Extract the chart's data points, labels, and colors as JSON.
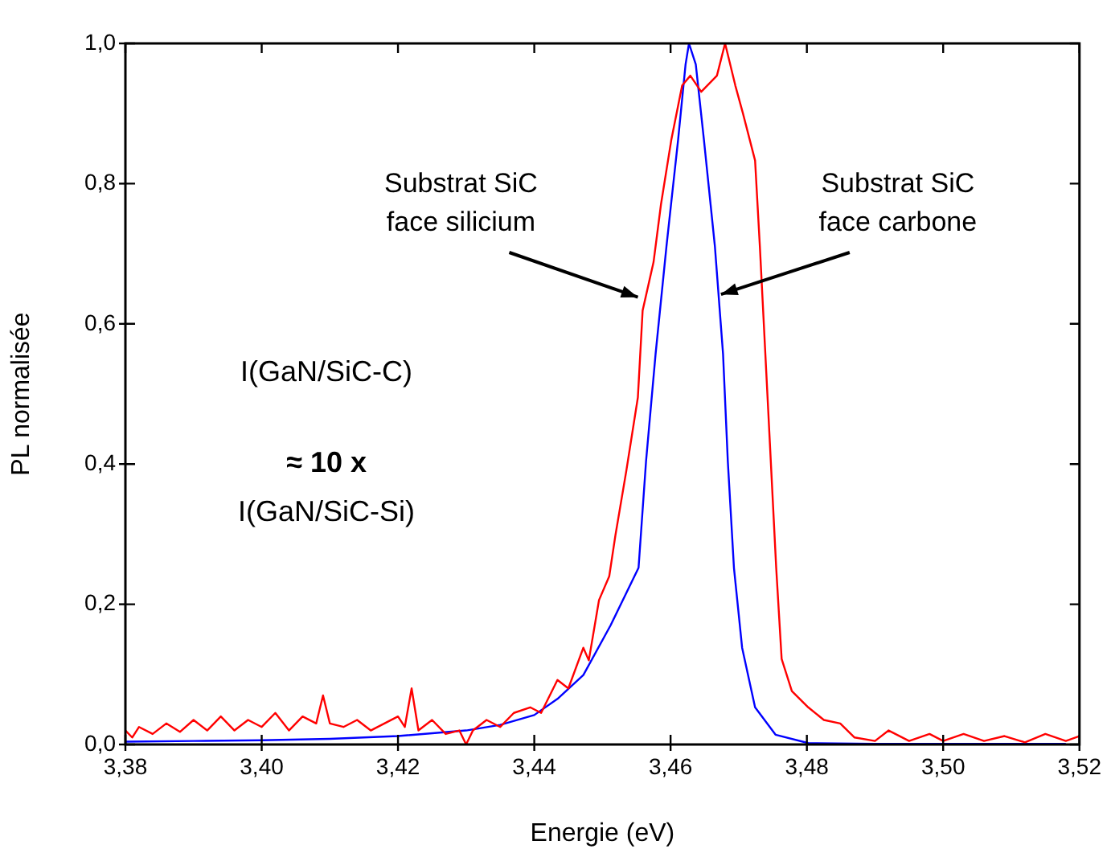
{
  "chart_data": {
    "type": "line",
    "xlabel": "Energie (eV)",
    "ylabel": "PL normalisée",
    "xlim": [
      3.38,
      3.52
    ],
    "xticks": [
      {
        "value": 3.38,
        "label": "3,38"
      },
      {
        "value": 3.4,
        "label": "3,40"
      },
      {
        "value": 3.42,
        "label": "3,42"
      },
      {
        "value": 3.44,
        "label": "3,44"
      },
      {
        "value": 3.46,
        "label": "3,46"
      },
      {
        "value": 3.48,
        "label": "3,48"
      },
      {
        "value": 3.5,
        "label": "3,50"
      },
      {
        "value": 3.52,
        "label": "3,52"
      }
    ],
    "ylim": [
      0,
      1
    ],
    "yticks": [
      {
        "value": 0,
        "label": "0,0"
      },
      {
        "value": 0.2,
        "label": "0,2"
      },
      {
        "value": 0.4,
        "label": "0,4"
      },
      {
        "value": 0.6,
        "label": "0,6"
      },
      {
        "value": 0.8,
        "label": "0,8"
      },
      {
        "value": 1,
        "label": "1,0"
      }
    ],
    "grid": false,
    "legend": false,
    "marker": "none",
    "line_style": "solid",
    "annotations": [
      {
        "text": "Substrat SiC\nface silicium",
        "x": 3.4552,
        "y": 0.638
      },
      {
        "text": "Substrat SiC\nface carbone",
        "x": 3.4674,
        "y": 0.642
      },
      "I(GaN/SiC-C)",
      "≈ 10 x",
      "I(GaN/SiC-Si)"
    ],
    "series": [
      {
        "color": "#ff0000",
        "x": [
          3.38,
          3.381,
          3.382,
          3.384,
          3.386,
          3.388,
          3.39,
          3.392,
          3.394,
          3.396,
          3.398,
          3.4,
          3.402,
          3.404,
          3.406,
          3.408,
          3.409,
          3.41,
          3.412,
          3.414,
          3.416,
          3.418,
          3.42,
          3.421,
          3.422,
          3.423,
          3.425,
          3.427,
          3.429,
          3.43,
          3.431,
          3.433,
          3.435,
          3.437,
          3.4394,
          3.441,
          3.4434,
          3.445,
          3.4472,
          3.448,
          3.4495,
          3.451,
          3.4519,
          3.4535,
          3.4552,
          3.4559,
          3.4575,
          3.4586,
          3.4601,
          3.4617,
          3.4629,
          3.4645,
          3.4668,
          3.468,
          3.4695,
          3.4706,
          3.4724,
          3.4731,
          3.4743,
          3.4755,
          3.4763,
          3.4778,
          3.4802,
          3.4825,
          3.4849,
          3.487,
          3.49,
          3.492,
          3.495,
          3.498,
          3.5,
          3.503,
          3.506,
          3.509,
          3.512,
          3.515,
          3.518,
          3.52
        ],
        "values": [
          0.02,
          0.01,
          0.025,
          0.015,
          0.03,
          0.018,
          0.035,
          0.02,
          0.04,
          0.02,
          0.035,
          0.025,
          0.045,
          0.02,
          0.04,
          0.03,
          0.07,
          0.03,
          0.025,
          0.035,
          0.02,
          0.03,
          0.04,
          0.025,
          0.08,
          0.02,
          0.035,
          0.015,
          0.02,
          0,
          0.02,
          0.035,
          0.025,
          0.045,
          0.053,
          0.045,
          0.092,
          0.08,
          0.138,
          0.12,
          0.206,
          0.24,
          0.298,
          0.39,
          0.495,
          0.619,
          0.688,
          0.771,
          0.862,
          0.94,
          0.954,
          0.931,
          0.954,
          1.0,
          0.94,
          0.901,
          0.833,
          0.711,
          0.482,
          0.252,
          0.122,
          0.076,
          0.053,
          0.035,
          0.03,
          0.01,
          0.005,
          0.02,
          0.005,
          0.015,
          0.005,
          0.015,
          0.005,
          0.012,
          0.003,
          0.015,
          0.005,
          0.012
        ]
      },
      {
        "color": "#0000ff",
        "x": [
          3.38,
          3.39,
          3.4,
          3.41,
          3.42,
          3.43,
          3.435,
          3.44,
          3.4434,
          3.4472,
          3.4512,
          3.4553,
          3.4564,
          3.4578,
          3.4594,
          3.4611,
          3.4622,
          3.4627,
          3.4637,
          3.4649,
          3.4665,
          3.4677,
          3.4684,
          3.4693,
          3.4705,
          3.4724,
          3.4754,
          3.4802,
          3.49,
          3.5,
          3.518
        ],
        "values": [
          0.004,
          0.005,
          0.006,
          0.008,
          0.012,
          0.02,
          0.028,
          0.042,
          0.065,
          0.099,
          0.17,
          0.252,
          0.404,
          0.557,
          0.711,
          0.862,
          0.97,
          1.0,
          0.97,
          0.862,
          0.711,
          0.557,
          0.404,
          0.252,
          0.138,
          0.053,
          0.014,
          0.002,
          0.001,
          0.001,
          0.001
        ]
      }
    ]
  }
}
